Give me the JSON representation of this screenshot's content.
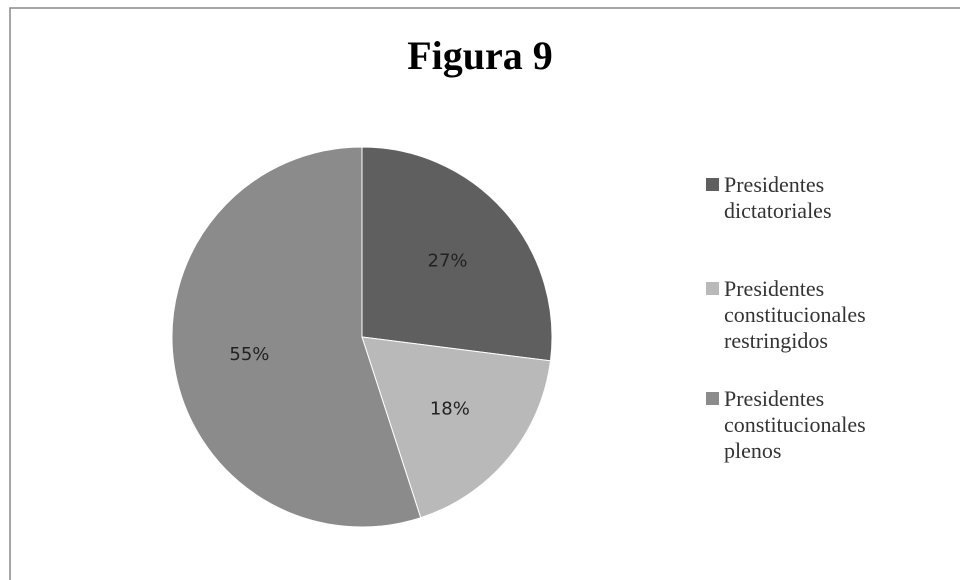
{
  "chart_data": {
    "type": "pie",
    "title": "Figura 9",
    "categories": [
      "Presidentes dictatoriales",
      "Presidentes constitucionales restringidos",
      "Presidentes constitucionales plenos"
    ],
    "values": [
      27,
      18,
      55
    ],
    "value_labels": [
      "27%",
      "18%",
      "55%"
    ],
    "colors": [
      "#5f5f5f",
      "#b9b9b9",
      "#8b8b8b"
    ],
    "legend": "right"
  }
}
